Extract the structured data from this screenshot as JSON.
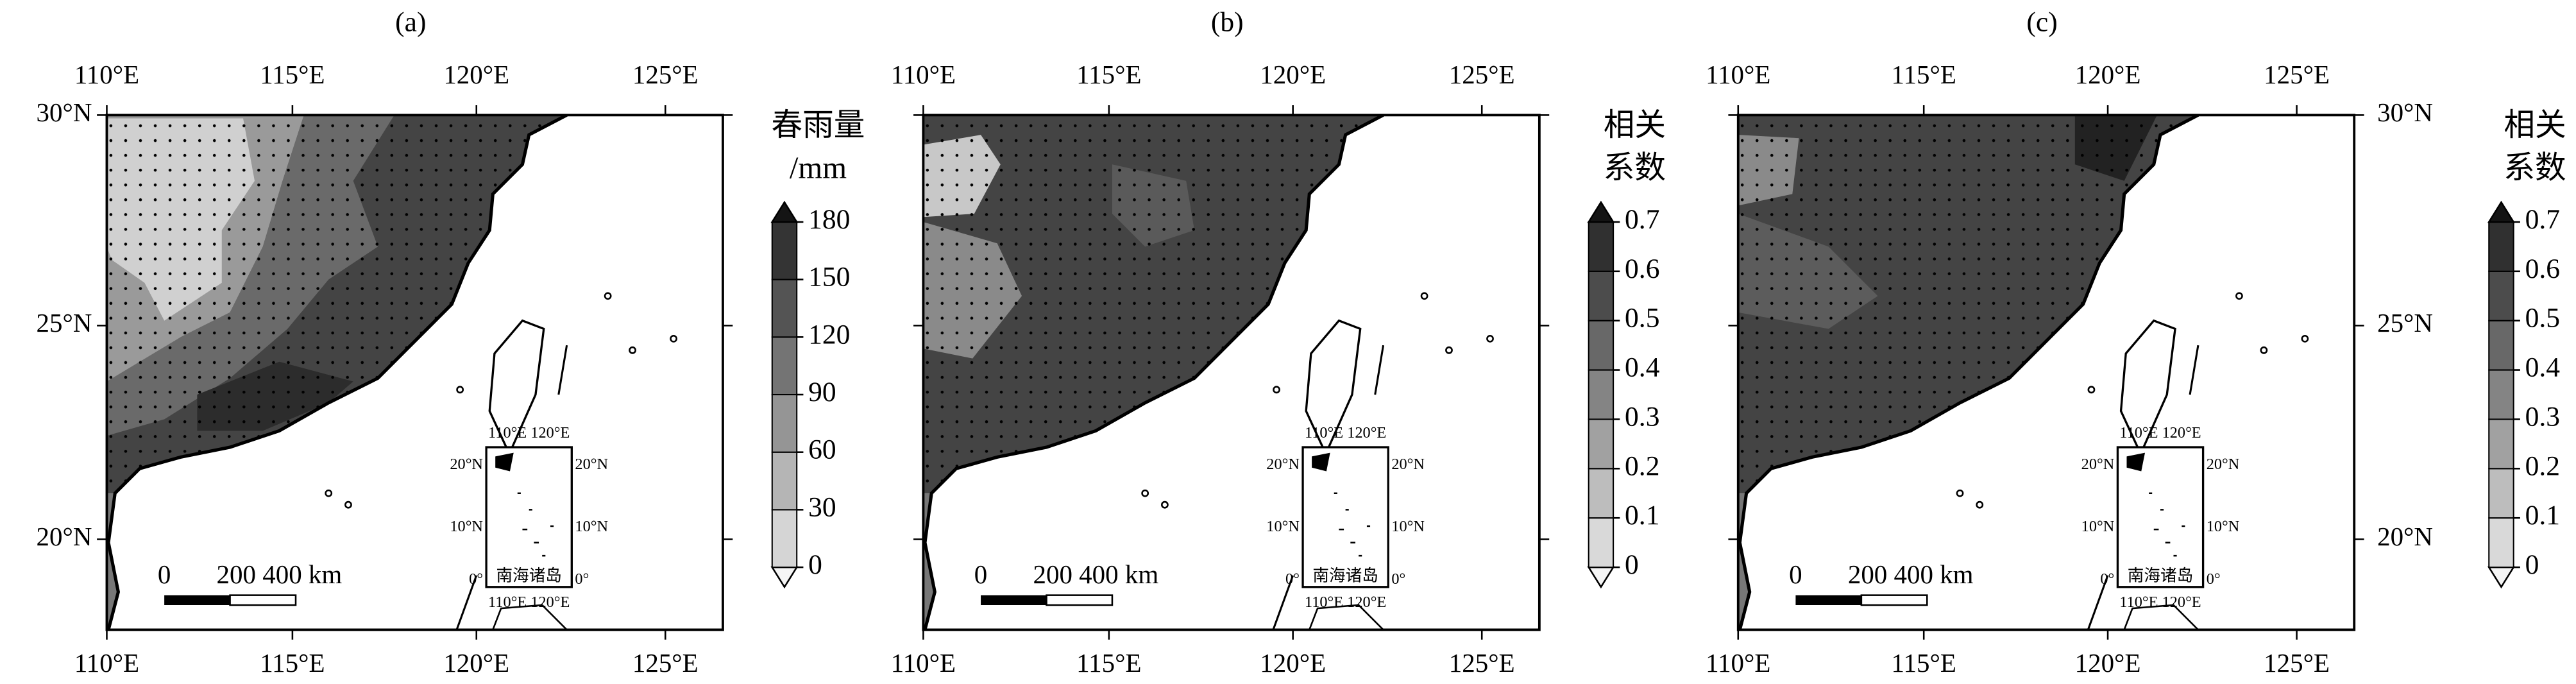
{
  "panels": [
    {
      "label": "(a)"
    },
    {
      "label": "(b)"
    },
    {
      "label": "(c)"
    }
  ],
  "axes": {
    "lon_labels": [
      "110°E",
      "115°E",
      "120°E",
      "125°E"
    ],
    "lat_labels": [
      "30°N",
      "25°N",
      "20°N"
    ]
  },
  "colorbars": [
    {
      "title_lines": [
        "春雨量",
        "/mm"
      ],
      "ticks": [
        0,
        30,
        60,
        90,
        120,
        150,
        180
      ]
    },
    {
      "title_lines": [
        "相关",
        "系数"
      ],
      "ticks": [
        0,
        0.1,
        0.2,
        0.3,
        0.4,
        0.5,
        0.6,
        0.7
      ]
    }
  ],
  "scale_bar": {
    "labels": [
      "0",
      "200 400 km"
    ]
  },
  "inset": {
    "lon_labels": [
      "110°E 120°E"
    ],
    "lat_labels": [
      "20°N",
      "10°N",
      "0°"
    ],
    "title": "南海诸岛"
  }
}
